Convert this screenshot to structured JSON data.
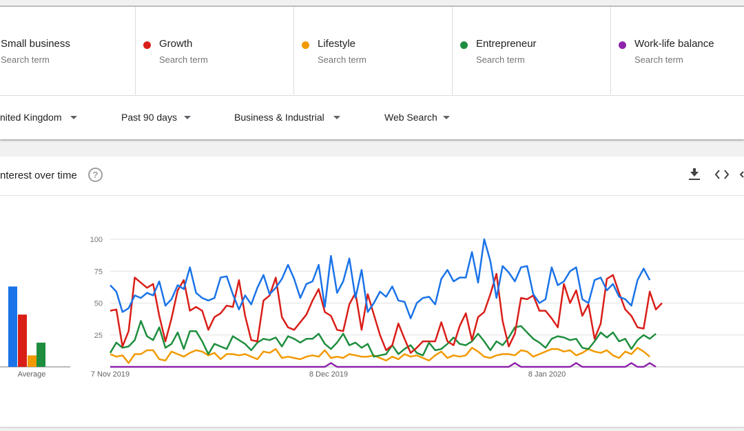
{
  "terms": [
    {
      "name": "Small business",
      "sub": "Search term",
      "color": "#1a73e8"
    },
    {
      "name": "Growth",
      "sub": "Search term",
      "color": "#d91e18"
    },
    {
      "name": "Lifestyle",
      "sub": "Search term",
      "color": "#f29900"
    },
    {
      "name": "Entrepreneur",
      "sub": "Search term",
      "color": "#1e8e3e"
    },
    {
      "name": "Work-life balance",
      "sub": "Search term",
      "color": "#8e24aa"
    }
  ],
  "filters": {
    "region": "nited Kingdom",
    "time": "Past 90 days",
    "category": "Business & Industrial",
    "search_type": "Web Search"
  },
  "card": {
    "title": "nterest over time",
    "help_icon": "help-circle-icon",
    "tool_icons": [
      "download-icon",
      "embed-code-icon",
      "share-icon"
    ]
  },
  "averages": {
    "label": "Average",
    "values": [
      63,
      41,
      9,
      19,
      0
    ]
  },
  "chart_data": {
    "type": "line",
    "ylim": [
      0,
      100
    ],
    "y_ticks": [
      "25",
      "50",
      "75",
      "100"
    ],
    "x_tick_labels": [
      "7 Nov 2019",
      "8 Dec 2019",
      "8 Jan 2020"
    ],
    "series": [
      {
        "name": "Small business",
        "color": "#1a73e8",
        "values": [
          64,
          59,
          43,
          46,
          56,
          54,
          58,
          56,
          67,
          48,
          53,
          64,
          61,
          78,
          58,
          54,
          52,
          54,
          70,
          71,
          57,
          45,
          56,
          49,
          62,
          72,
          57,
          62,
          69,
          80,
          69,
          54,
          65,
          67,
          80,
          47,
          87,
          58,
          67,
          85,
          54,
          76,
          43,
          50,
          59,
          55,
          63,
          52,
          51,
          38,
          50,
          54,
          55,
          49,
          69,
          76,
          67,
          70,
          70,
          90,
          66,
          100,
          83,
          54,
          79,
          74,
          67,
          78,
          79,
          57,
          50,
          53,
          78,
          64,
          67,
          75,
          78,
          53,
          50,
          68,
          70,
          60,
          65,
          55,
          53,
          48,
          68,
          77,
          68
        ]
      },
      {
        "name": "Growth",
        "color": "#d91e18",
        "values": [
          44,
          45,
          16,
          28,
          70,
          66,
          62,
          65,
          40,
          20,
          38,
          60,
          68,
          44,
          47,
          44,
          29,
          39,
          42,
          48,
          47,
          68,
          40,
          21,
          20,
          52,
          56,
          70,
          39,
          31,
          29,
          35,
          41,
          52,
          61,
          43,
          40,
          29,
          28,
          49,
          58,
          29,
          57,
          41,
          25,
          13,
          17,
          34,
          22,
          11,
          15,
          20,
          20,
          20,
          35,
          20,
          17,
          32,
          42,
          21,
          39,
          43,
          57,
          73,
          36,
          16,
          26,
          54,
          53,
          56,
          44,
          44,
          38,
          31,
          65,
          50,
          60,
          40,
          49,
          22,
          34,
          69,
          72,
          58,
          45,
          40,
          31,
          30,
          59,
          45,
          50
        ]
      },
      {
        "name": "Lifestyle",
        "color": "#f29900",
        "values": [
          10,
          8,
          9,
          3,
          10,
          10,
          13,
          13,
          6,
          5,
          12,
          10,
          8,
          11,
          13,
          12,
          9,
          11,
          6,
          10,
          10,
          9,
          10,
          8,
          6,
          12,
          11,
          14,
          7,
          8,
          7,
          6,
          8,
          9,
          8,
          13,
          7,
          8,
          7,
          10,
          9,
          8,
          8,
          9,
          7,
          5,
          8,
          6,
          10,
          8,
          9,
          7,
          5,
          9,
          12,
          7,
          9,
          8,
          9,
          15,
          12,
          8,
          7,
          9,
          10,
          10,
          9,
          13,
          12,
          8,
          10,
          12,
          14,
          14,
          12,
          13,
          9,
          11,
          14,
          12,
          11,
          13,
          9,
          7,
          12,
          10,
          15,
          12,
          8
        ]
      },
      {
        "name": "Entrepreneur",
        "color": "#1e8e3e",
        "values": [
          11,
          19,
          15,
          16,
          21,
          36,
          24,
          21,
          31,
          15,
          18,
          27,
          14,
          28,
          28,
          20,
          10,
          18,
          16,
          14,
          24,
          21,
          18,
          13,
          19,
          22,
          21,
          23,
          16,
          24,
          22,
          19,
          22,
          22,
          26,
          18,
          14,
          19,
          26,
          17,
          19,
          15,
          18,
          8,
          9,
          10,
          17,
          10,
          14,
          17,
          11,
          9,
          19,
          13,
          14,
          18,
          23,
          18,
          17,
          20,
          26,
          20,
          13,
          20,
          17,
          23,
          31,
          32,
          27,
          22,
          19,
          15,
          22,
          24,
          23,
          21,
          22,
          15,
          14,
          20,
          27,
          23,
          27,
          20,
          22,
          14,
          21,
          25,
          22,
          26
        ]
      },
      {
        "name": "Work-life balance",
        "color": "#8e24aa",
        "values": [
          0,
          0,
          0,
          0,
          0,
          0,
          0,
          0,
          0,
          0,
          0,
          0,
          0,
          0,
          0,
          0,
          0,
          0,
          0,
          0,
          0,
          0,
          0,
          0,
          0,
          0,
          0,
          0,
          0,
          0,
          0,
          0,
          0,
          0,
          0,
          0,
          3,
          0,
          0,
          0,
          0,
          0,
          0,
          0,
          0,
          0,
          0,
          0,
          0,
          0,
          0,
          0,
          0,
          0,
          0,
          0,
          0,
          0,
          0,
          0,
          0,
          0,
          0,
          0,
          0,
          0,
          3,
          0,
          0,
          0,
          0,
          0,
          0,
          0,
          0,
          0,
          3,
          0,
          0,
          0,
          0,
          0,
          0,
          0,
          0,
          3,
          0,
          0,
          3,
          0
        ]
      }
    ]
  }
}
